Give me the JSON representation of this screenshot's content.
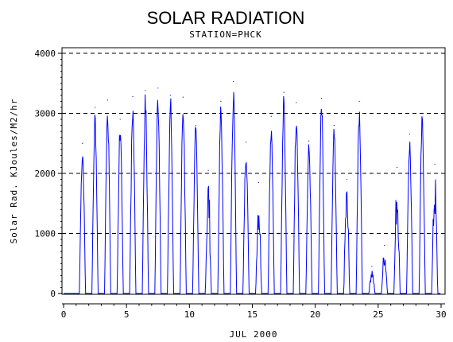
{
  "chart_data": {
    "type": "line",
    "title": "SOLAR RADIATION",
    "subtitle": "STATION=PHCK",
    "xlabel": "JUL 2000",
    "ylabel": "Solar Rad. KJoules/M2/hr",
    "xlim": [
      0,
      30
    ],
    "ylim": [
      0,
      4000
    ],
    "x_ticks": [
      0,
      5,
      10,
      15,
      20,
      25,
      30
    ],
    "y_ticks": [
      0,
      1000,
      2000,
      3000,
      4000
    ],
    "grid": "horizontal-dashed",
    "legend": "none",
    "series_color": "#0000ff",
    "daily_peaks": [
      {
        "day": 1,
        "peak": 2500
      },
      {
        "day": 2,
        "peak": 3100
      },
      {
        "day": 3,
        "peak": 3220
      },
      {
        "day": 4,
        "peak": 2900
      },
      {
        "day": 5,
        "peak": 3280
      },
      {
        "day": 6,
        "peak": 3380
      },
      {
        "day": 7,
        "peak": 3420
      },
      {
        "day": 8,
        "peak": 3300
      },
      {
        "day": 9,
        "peak": 3270
      },
      {
        "day": 10,
        "peak": 2800
      },
      {
        "day": 11,
        "peak": 2050
      },
      {
        "day": 12,
        "peak": 3200
      },
      {
        "day": 13,
        "peak": 3530
      },
      {
        "day": 14,
        "peak": 2520
      },
      {
        "day": 15,
        "peak": 1850
      },
      {
        "day": 16,
        "peak": 2950
      },
      {
        "day": 17,
        "peak": 3350
      },
      {
        "day": 18,
        "peak": 3180
      },
      {
        "day": 19,
        "peak": 2540
      },
      {
        "day": 20,
        "peak": 3250
      },
      {
        "day": 21,
        "peak": 2800
      },
      {
        "day": 22,
        "peak": 1900
      },
      {
        "day": 23,
        "peak": 3200
      },
      {
        "day": 24,
        "peak": 450
      },
      {
        "day": 25,
        "peak": 800
      },
      {
        "day": 26,
        "peak": 2100
      },
      {
        "day": 27,
        "peak": 2650
      },
      {
        "day": 28,
        "peak": 3000
      },
      {
        "day": 29,
        "peak": 2150
      }
    ]
  }
}
